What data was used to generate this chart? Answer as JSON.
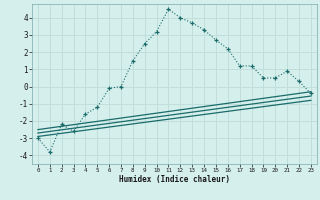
{
  "title": "",
  "xlabel": "Humidex (Indice chaleur)",
  "bg_color": "#d5efec",
  "grid_color": "#c0deda",
  "line_color": "#1a6b6b",
  "xlim": [
    -0.5,
    23.5
  ],
  "ylim": [
    -4.5,
    4.8
  ],
  "xticks": [
    0,
    1,
    2,
    3,
    4,
    5,
    6,
    7,
    8,
    9,
    10,
    11,
    12,
    13,
    14,
    15,
    16,
    17,
    18,
    19,
    20,
    21,
    22,
    23
  ],
  "yticks": [
    -4,
    -3,
    -2,
    -1,
    0,
    1,
    2,
    3,
    4
  ],
  "series1_x": [
    0,
    1,
    2,
    3,
    4,
    5,
    6,
    7,
    8,
    9,
    10,
    11,
    12,
    13,
    14,
    15,
    16,
    17,
    18,
    19,
    20,
    21,
    22,
    23
  ],
  "series1_y": [
    -3.0,
    -3.8,
    -2.2,
    -2.6,
    -1.6,
    -1.2,
    -0.1,
    0.0,
    1.5,
    2.5,
    3.2,
    4.5,
    4.0,
    3.7,
    3.3,
    2.7,
    2.2,
    1.2,
    1.2,
    0.5,
    0.5,
    0.9,
    0.3,
    -0.4
  ],
  "series2_x": [
    0,
    23
  ],
  "series2_y": [
    -2.5,
    -0.3
  ],
  "series3_x": [
    0,
    23
  ],
  "series3_y": [
    -2.7,
    -0.55
  ],
  "series4_x": [
    0,
    23
  ],
  "series4_y": [
    -2.9,
    -0.8
  ]
}
